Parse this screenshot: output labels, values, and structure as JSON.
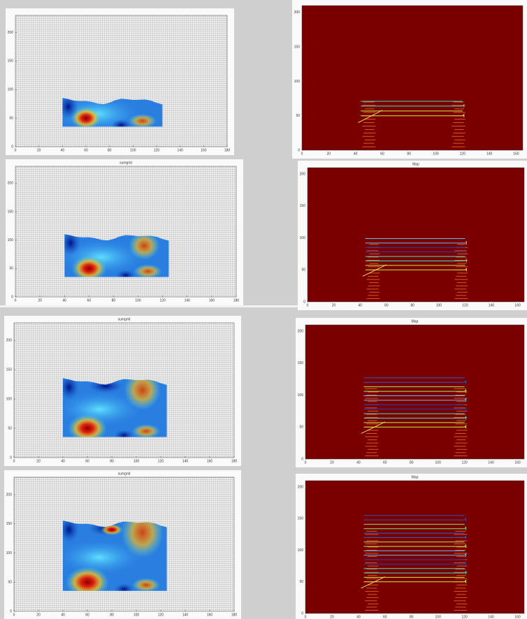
{
  "left_axes": {
    "xlim": [
      0,
      180
    ],
    "xticks": [
      0,
      20,
      40,
      60,
      80,
      100,
      120,
      140,
      160,
      180
    ],
    "ylim": [
      0,
      230
    ],
    "yticks": [
      0,
      50,
      100,
      150,
      200
    ]
  },
  "right_axes": {
    "xlim": [
      0,
      165
    ],
    "xticks": [
      0,
      20,
      40,
      60,
      80,
      100,
      120,
      140,
      160
    ],
    "ylim": [
      0,
      210
    ],
    "yticks": [
      0,
      50,
      100,
      150,
      200
    ]
  },
  "rows": [
    {
      "left_title": null,
      "right_title": null
    },
    {
      "left_title": "sumgrid",
      "right_title": "Map"
    },
    {
      "left_title": "sumgrid",
      "right_title": "Map"
    },
    {
      "left_title": "sumgrid",
      "right_title": "Map"
    }
  ]
}
